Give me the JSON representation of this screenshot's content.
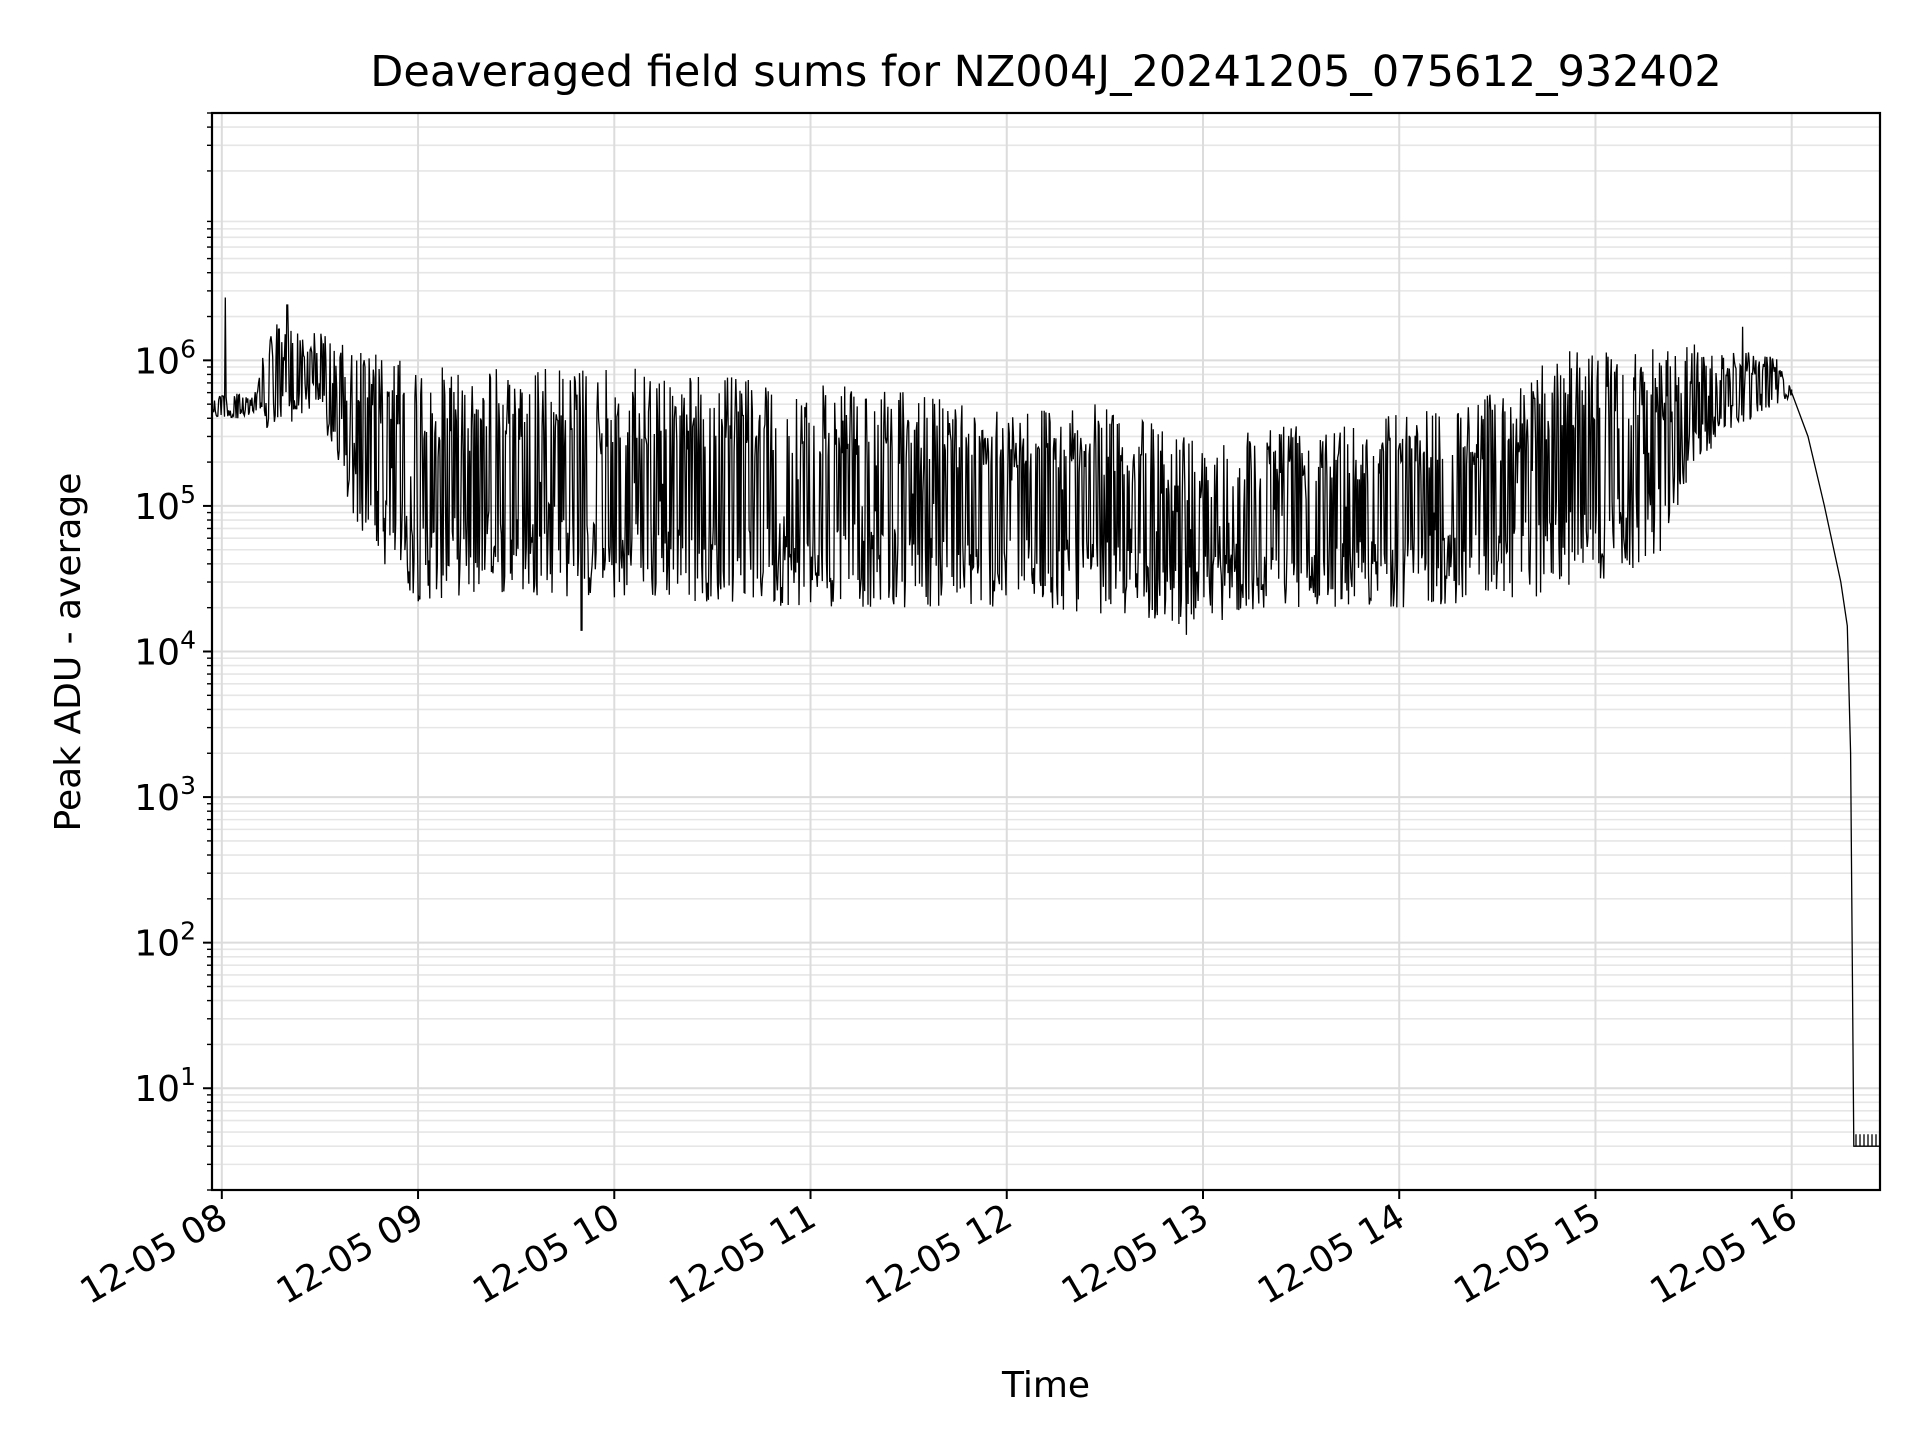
{
  "chart_data": {
    "type": "line",
    "title": "Deaveraged field sums for NZ004J_20241205_075612_932402",
    "xlabel": "Time",
    "ylabel": "Peak ADU - average",
    "yscale": "log",
    "ylim": [
      2,
      50000000
    ],
    "xlim": [
      "2024-12-05T07:57",
      "2024-12-05T16:27"
    ],
    "grid": "both-major-and-minor",
    "legend": "none",
    "line_color": "#000000",
    "y_ticks": [
      {
        "base": "10",
        "exp": "1",
        "value": 10
      },
      {
        "base": "10",
        "exp": "2",
        "value": 100
      },
      {
        "base": "10",
        "exp": "3",
        "value": 1000
      },
      {
        "base": "10",
        "exp": "4",
        "value": 10000
      },
      {
        "base": "10",
        "exp": "5",
        "value": 100000
      },
      {
        "base": "10",
        "exp": "6",
        "value": 1000000
      }
    ],
    "x_ticks": [
      {
        "label": "12-05 08",
        "time": "2024-12-05T08:00"
      },
      {
        "label": "12-05 09",
        "time": "2024-12-05T09:00"
      },
      {
        "label": "12-05 10",
        "time": "2024-12-05T10:00"
      },
      {
        "label": "12-05 11",
        "time": "2024-12-05T11:00"
      },
      {
        "label": "12-05 12",
        "time": "2024-12-05T12:00"
      },
      {
        "label": "12-05 13",
        "time": "2024-12-05T13:00"
      },
      {
        "label": "12-05 14",
        "time": "2024-12-05T14:00"
      },
      {
        "label": "12-05 15",
        "time": "2024-12-05T15:00"
      },
      {
        "label": "12-05 16",
        "time": "2024-12-05T16:00"
      }
    ],
    "series": [
      {
        "envelope": [
          {
            "time": "2024-12-05T07:57",
            "low": 400000,
            "high": 600000
          },
          {
            "time": "2024-12-05T08:10",
            "low": 400000,
            "high": 600000
          },
          {
            "time": "2024-12-05T08:15",
            "low": 300000,
            "high": 1800000
          },
          {
            "time": "2024-12-05T08:30",
            "low": 500000,
            "high": 1600000
          },
          {
            "time": "2024-12-05T08:35",
            "low": 150000,
            "high": 1300000
          },
          {
            "time": "2024-12-05T08:45",
            "low": 50000,
            "high": 1200000
          },
          {
            "time": "2024-12-05T09:00",
            "low": 22000,
            "high": 900000
          },
          {
            "time": "2024-12-05T09:30",
            "low": 25000,
            "high": 900000
          },
          {
            "time": "2024-12-05T10:00",
            "low": 22000,
            "high": 900000
          },
          {
            "time": "2024-12-05T10:30",
            "low": 22000,
            "high": 800000
          },
          {
            "time": "2024-12-05T11:00",
            "low": 20000,
            "high": 700000
          },
          {
            "time": "2024-12-05T11:30",
            "low": 20000,
            "high": 600000
          },
          {
            "time": "2024-12-05T12:00",
            "low": 20000,
            "high": 500000
          },
          {
            "time": "2024-12-05T12:30",
            "low": 18000,
            "high": 500000
          },
          {
            "time": "2024-12-05T12:55",
            "low": 15000,
            "high": 300000
          },
          {
            "time": "2024-12-05T13:30",
            "low": 20000,
            "high": 400000
          },
          {
            "time": "2024-12-05T14:00",
            "low": 20000,
            "high": 450000
          },
          {
            "time": "2024-12-05T14:30",
            "low": 22000,
            "high": 600000
          },
          {
            "time": "2024-12-05T14:50",
            "low": 25000,
            "high": 1200000
          },
          {
            "time": "2024-12-05T15:20",
            "low": 40000,
            "high": 1200000
          },
          {
            "time": "2024-12-05T15:30",
            "low": 200000,
            "high": 1300000
          },
          {
            "time": "2024-12-05T15:55",
            "low": 500000,
            "high": 1100000
          },
          {
            "time": "2024-12-05T16:00",
            "low": 550000,
            "high": 650000
          }
        ],
        "decay": [
          {
            "time": "2024-12-05T16:00",
            "value": 600000
          },
          {
            "time": "2024-12-05T16:05",
            "value": 300000
          },
          {
            "time": "2024-12-05T16:10",
            "value": 100000
          },
          {
            "time": "2024-12-05T16:15",
            "value": 30000
          },
          {
            "time": "2024-12-05T16:17",
            "value": 15000
          },
          {
            "time": "2024-12-05T16:18",
            "value": 2000
          },
          {
            "time": "2024-12-05T16:19",
            "value": 4
          },
          {
            "time": "2024-12-05T16:27",
            "value": 4
          }
        ],
        "spikes": [
          {
            "time": "2024-12-05T08:01",
            "value": 2700000
          },
          {
            "time": "2024-12-05T08:20",
            "value": 2400000
          },
          {
            "time": "2024-12-05T09:50",
            "value": 14000
          },
          {
            "time": "2024-12-05T12:55",
            "value": 13000
          },
          {
            "time": "2024-12-05T15:45",
            "value": 1700000
          }
        ]
      }
    ]
  }
}
